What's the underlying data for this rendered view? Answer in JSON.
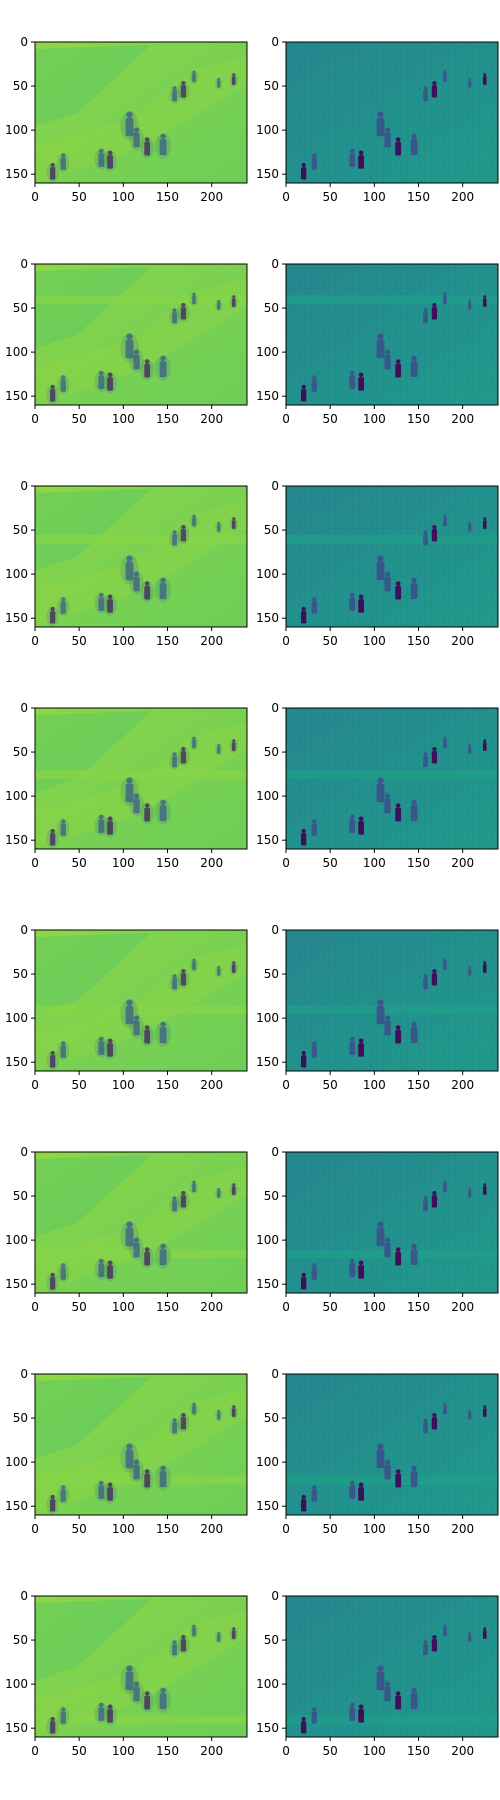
{
  "figure": {
    "layout": "8 rows x 2 columns grid of image panels",
    "left_column": "smooth reconstruction (viridis colormap, mostly bright green)",
    "right_column": "noisy/detailed image (viridis colormap, mostly teal)"
  },
  "chart_data": {
    "type": "heatmap",
    "colormap": "viridis",
    "rows": 8,
    "cols": 2,
    "image_width": 240,
    "image_height": 160,
    "xlim": [
      0,
      240
    ],
    "ylim": [
      160,
      0
    ],
    "x_ticks": [
      0,
      50,
      100,
      150,
      200
    ],
    "y_ticks": [
      0,
      50,
      100,
      150
    ],
    "grid": false,
    "legend": "none",
    "band_rows_y": [
      null,
      40,
      60,
      75,
      90,
      115,
      120,
      140
    ],
    "figures": [
      {
        "cx": 20,
        "cy": 148,
        "h": 20
      },
      {
        "cx": 32,
        "cy": 137,
        "h": 20
      },
      {
        "cx": 75,
        "cy": 133,
        "h": 22
      },
      {
        "cx": 85,
        "cy": 135,
        "h": 22
      },
      {
        "cx": 107,
        "cy": 95,
        "h": 30
      },
      {
        "cx": 115,
        "cy": 110,
        "h": 24
      },
      {
        "cx": 127,
        "cy": 120,
        "h": 22
      },
      {
        "cx": 145,
        "cy": 118,
        "h": 26
      },
      {
        "cx": 158,
        "cy": 60,
        "h": 18
      },
      {
        "cx": 168,
        "cy": 55,
        "h": 20
      },
      {
        "cx": 180,
        "cy": 40,
        "h": 14
      },
      {
        "cx": 208,
        "cy": 47,
        "h": 12
      },
      {
        "cx": 225,
        "cy": 43,
        "h": 14
      }
    ],
    "colors": {
      "left_background": "#7ad151",
      "left_shadow": "#5cc863",
      "right_background": "#21918c",
      "right_band": "#1f9e89",
      "figure_dark": "#3b528b",
      "figure_darkest": "#440154"
    }
  }
}
